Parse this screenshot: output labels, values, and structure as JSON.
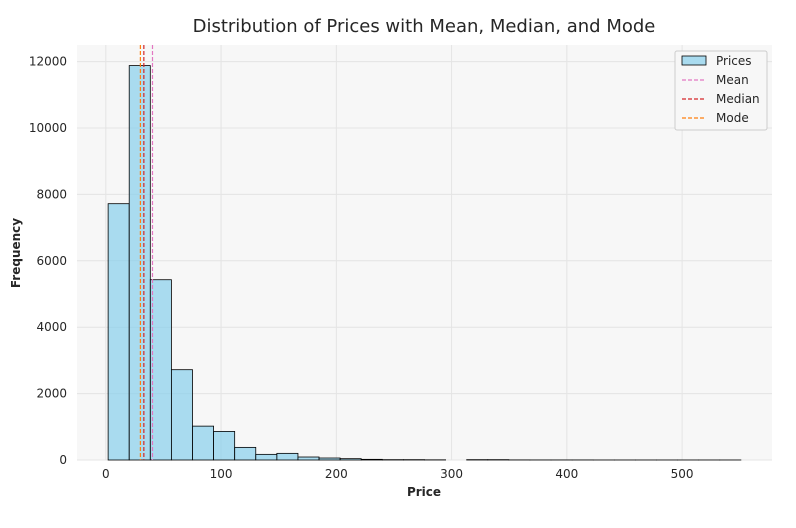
{
  "chart_data": {
    "type": "bar",
    "title": "Distribution of Prices with Mean, Median, and Mode",
    "xlabel": "Price",
    "ylabel": "Frequency",
    "xlim": [
      -25,
      578
    ],
    "ylim": [
      0,
      12500
    ],
    "xticks": [
      0,
      100,
      200,
      300,
      400,
      500
    ],
    "yticks": [
      0,
      2000,
      4000,
      6000,
      8000,
      10000,
      12000
    ],
    "grid": true,
    "legend_position": "top-right",
    "bin_start": 2,
    "bin_width": 18.3,
    "series": [
      {
        "name": "Prices",
        "color": "#87CEEB",
        "values": [
          7720,
          11880,
          5430,
          2720,
          1020,
          860,
          380,
          170,
          200,
          90,
          60,
          40,
          20,
          10,
          10,
          5,
          0,
          10,
          10,
          3,
          2,
          2,
          2,
          1,
          1,
          1,
          1,
          1,
          1,
          1
        ]
      }
    ],
    "reference_lines": [
      {
        "name": "Mean",
        "value": 40.5,
        "color": "#e377c2"
      },
      {
        "name": "Median",
        "value": 33.0,
        "color": "#d62728"
      },
      {
        "name": "Mode",
        "value": 30.0,
        "color": "#ff7f0e"
      }
    ]
  }
}
